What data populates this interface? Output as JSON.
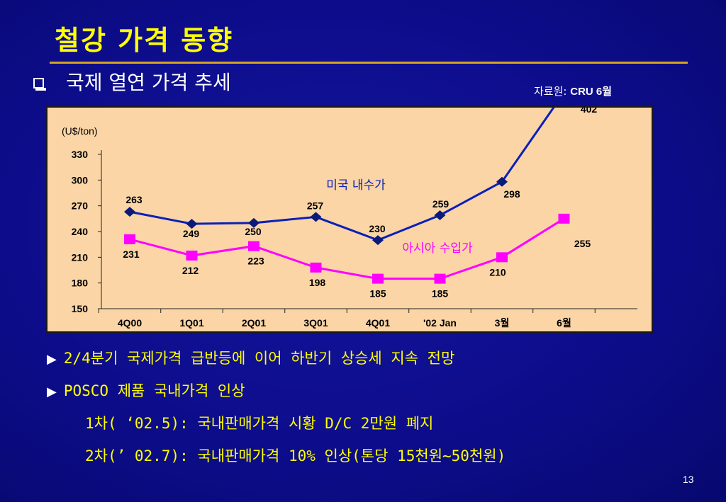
{
  "slide": {
    "title": "철강 가격 동향",
    "subtitle": "국제 열연 가격 추세",
    "source_label": "자료원:",
    "source_value": "CRU 6월",
    "page_number": "13"
  },
  "chart_data": {
    "type": "line",
    "unit_label": "(U$/ton)",
    "categories": [
      "4Q00",
      "1Q01",
      "2Q01",
      "3Q01",
      "4Q01",
      "'02 Jan",
      "3월",
      "6월"
    ],
    "ylim": [
      150,
      330
    ],
    "yticks": [
      "150",
      "180",
      "210",
      "240",
      "270",
      "300",
      "330"
    ],
    "grid": false,
    "series": [
      {
        "name": "미국 내수가",
        "color": "#0a20b8",
        "marker": "diamond",
        "values": [
          263,
          249,
          250,
          257,
          230,
          259,
          298,
          402
        ],
        "labels": [
          "263",
          "249",
          "250",
          "257",
          "230",
          "259",
          "298",
          "402"
        ]
      },
      {
        "name": "아시아 수입가",
        "color": "#ff00ff",
        "marker": "square",
        "values": [
          231,
          212,
          223,
          198,
          185,
          185,
          210,
          255
        ],
        "labels": [
          "231",
          "212",
          "223",
          "198",
          "185",
          "185",
          "210",
          "255"
        ]
      }
    ]
  },
  "notes": [
    {
      "arrow": "▶",
      "text": "2/4분기 국제가격 급반등에 이어 하반기 상승세 지속 전망"
    },
    {
      "arrow": "▶",
      "text": "POSCO 제품 국내가격 인상"
    },
    {
      "arrow": "",
      "text": "1차( ‘02.5): 국내판매가격 시황 D/C 2만원 폐지"
    },
    {
      "arrow": "",
      "text": "2차(’ 02.7): 국내판매가격 10% 인상(톤당 15천원~50천원)"
    }
  ]
}
